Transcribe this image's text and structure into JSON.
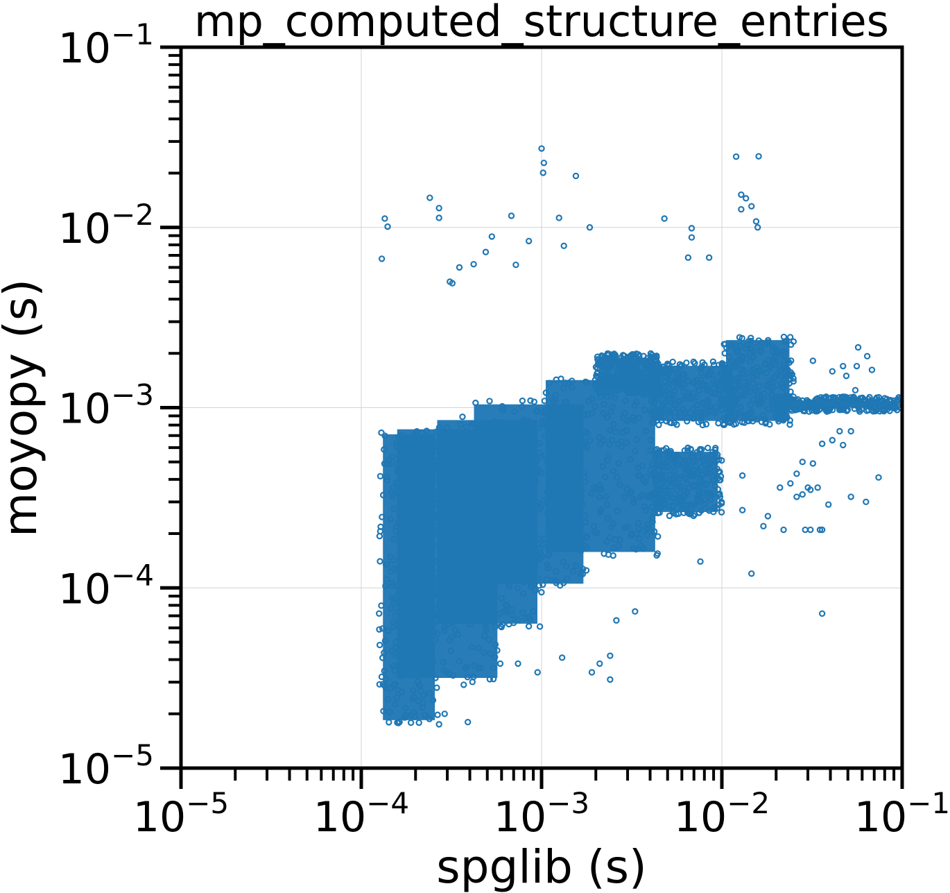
{
  "chart_data": {
    "type": "scatter",
    "title": "mp_computed_structure_entries",
    "xlabel": "spglib (s)",
    "ylabel": "moyopy (s)",
    "x_scale": "log",
    "y_scale": "log",
    "xlim": [
      1e-05,
      0.1
    ],
    "ylim": [
      1e-05,
      0.1
    ],
    "grid": true,
    "marker": "hollow-circle",
    "x_ticks": [
      {
        "value": 1e-05,
        "base": "10",
        "exp": "−5"
      },
      {
        "value": 0.0001,
        "base": "10",
        "exp": "−4"
      },
      {
        "value": 0.001,
        "base": "10",
        "exp": "−3"
      },
      {
        "value": 0.01,
        "base": "10",
        "exp": "−2"
      },
      {
        "value": 0.1,
        "base": "10",
        "exp": "−1"
      }
    ],
    "y_ticks": [
      {
        "value": 1e-05,
        "base": "10",
        "exp": "−5"
      },
      {
        "value": 0.0001,
        "base": "10",
        "exp": "−4"
      },
      {
        "value": 0.001,
        "base": "10",
        "exp": "−3"
      },
      {
        "value": 0.01,
        "base": "10",
        "exp": "−2"
      },
      {
        "value": 0.1,
        "base": "10",
        "exp": "−1"
      }
    ],
    "series": [
      {
        "color": "#1f77b4",
        "dense_regions": [
          {
            "x": [
              0.000125,
              0.00027
            ],
            "y": [
              1.75e-05,
              0.00075
            ]
          },
          {
            "x": [
              0.00015,
              0.0006
            ],
            "y": [
              3e-05,
              0.0008
            ]
          },
          {
            "x": [
              0.00025,
              0.001
            ],
            "y": [
              6e-05,
              0.0009
            ]
          },
          {
            "x": [
              0.0004,
              0.0018
            ],
            "y": [
              0.0001,
              0.0011
            ]
          },
          {
            "x": [
              0.001,
              0.0045
            ],
            "y": [
              0.00015,
              0.0015
            ]
          },
          {
            "x": [
              0.002,
              0.0045
            ],
            "y": [
              0.0012,
              0.002
            ]
          },
          {
            "x": [
              0.004,
              0.01
            ],
            "y": [
              0.00025,
              0.0006
            ]
          },
          {
            "x": [
              0.004,
              0.012
            ],
            "y": [
              0.0008,
              0.0018
            ]
          },
          {
            "x": [
              0.01,
              0.025
            ],
            "y": [
              0.0008,
              0.0025
            ]
          },
          {
            "x": [
              0.02,
              0.1
            ],
            "y": [
              0.00095,
              0.00115
            ]
          }
        ],
        "points": [
          [
            0.000135,
            0.0112
          ],
          [
            0.00014,
            0.0101
          ],
          [
            0.00013,
            0.0067
          ],
          [
            0.00024,
            0.0146
          ],
          [
            0.00027,
            0.0113
          ],
          [
            0.00027,
            0.0128
          ],
          [
            0.00042,
            0.00625
          ],
          [
            0.00035,
            0.006
          ],
          [
            0.00049,
            0.0073
          ],
          [
            0.00053,
            0.0089
          ],
          [
            0.00068,
            0.0116
          ],
          [
            0.00085,
            0.0084
          ],
          [
            0.001,
            0.0274
          ],
          [
            0.00103,
            0.0228
          ],
          [
            0.00102,
            0.0201
          ],
          [
            0.00125,
            0.0113
          ],
          [
            0.00155,
            0.0193
          ],
          [
            0.00185,
            0.01
          ],
          [
            0.00133,
            0.0079
          ],
          [
            0.0048,
            0.0112
          ],
          [
            0.0068,
            0.0099
          ],
          [
            0.0068,
            0.0088
          ],
          [
            0.012,
            0.0247
          ],
          [
            0.016,
            0.0248
          ],
          [
            0.0128,
            0.0152
          ],
          [
            0.0136,
            0.0145
          ],
          [
            0.0146,
            0.0131
          ],
          [
            0.0128,
            0.0126
          ],
          [
            0.0155,
            0.0108
          ],
          [
            0.0158,
            0.01
          ],
          [
            0.0085,
            0.0068
          ],
          [
            0.0065,
            0.0068
          ],
          [
            0.00072,
            0.0062
          ],
          [
            0.00031,
            0.005
          ],
          [
            0.00032,
            0.0049
          ],
          [
            0.036,
            7.2e-05
          ],
          [
            0.0146,
            0.00012
          ],
          [
            0.0076,
            0.00014
          ],
          [
            0.0044,
            0.000155
          ],
          [
            0.0026,
            6.6e-05
          ],
          [
            0.0033,
            7.4e-05
          ],
          [
            0.0024,
            4.2e-05
          ],
          [
            0.0021,
            3.8e-05
          ],
          [
            0.0024,
            3.1e-05
          ],
          [
            0.0019,
            3.4e-05
          ],
          [
            0.0013,
            4.1e-05
          ],
          [
            0.00095,
            3.4e-05
          ],
          [
            0.00074,
            3.8e-05
          ],
          [
            0.00039,
            1.8e-05
          ],
          [
            0.00027,
            1.75e-05
          ],
          [
            0.00029,
            2e-05
          ],
          [
            0.00037,
            2.9e-05
          ],
          [
            0.00022,
            2.3e-05
          ],
          [
            0.00046,
            3.6e-05
          ],
          [
            0.00059,
            3.8e-05
          ],
          [
            0.074,
            0.00041
          ],
          [
            0.063,
            0.0003
          ],
          [
            0.052,
            0.00032
          ],
          [
            0.039,
            0.00029
          ],
          [
            0.036,
            0.00021
          ],
          [
            0.031,
            0.00021
          ],
          [
            0.026,
            0.00032
          ],
          [
            0.024,
            0.00038
          ],
          [
            0.021,
            0.00036
          ],
          [
            0.018,
            0.00025
          ],
          [
            0.017,
            0.00022
          ],
          [
            0.013,
            0.00042
          ],
          [
            0.013,
            0.00027
          ],
          [
            0.022,
            0.00021
          ],
          [
            0.028,
            0.00033
          ],
          [
            0.034,
            0.00036
          ],
          [
            0.031,
            0.00035
          ],
          [
            0.026,
            0.00043
          ],
          [
            0.041,
            0.00066
          ],
          [
            0.032,
            0.00049
          ],
          [
            0.028,
            0.0005
          ],
          [
            0.036,
            0.00063
          ],
          [
            0.045,
            0.00074
          ],
          [
            0.052,
            0.00074
          ],
          [
            0.047,
            0.00062
          ],
          [
            0.03,
            0.00036
          ],
          [
            0.029,
            0.00021
          ],
          [
            0.035,
            0.00021
          ],
          [
            0.055,
            0.00125
          ],
          [
            0.056,
            0.0017
          ],
          [
            0.064,
            0.00193
          ],
          [
            0.047,
            0.0017
          ],
          [
            0.068,
            0.00162
          ],
          [
            0.057,
            0.00216
          ],
          [
            0.049,
            0.0015
          ],
          [
            0.041,
            0.00159
          ],
          [
            0.032,
            0.00182
          ],
          [
            0.037,
            0.00113
          ]
        ]
      }
    ]
  }
}
